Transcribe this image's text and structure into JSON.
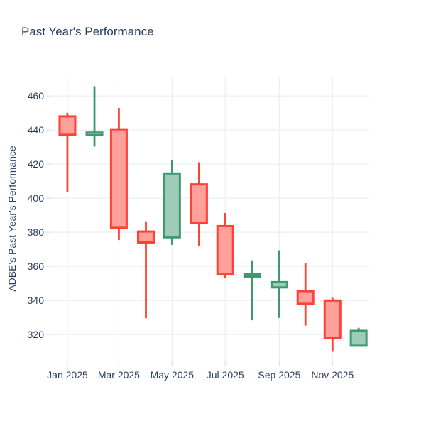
{
  "chart_data": {
    "type": "candlestick",
    "title": "Past Year's Performance",
    "ylabel": "ADBE's Past Year's Performance",
    "xlabel": "",
    "legend": false,
    "grid": true,
    "candles": [
      {
        "x": "Jan 2025",
        "open": 448.0,
        "high": 450.1,
        "low": 403.6,
        "close": 437.2
      },
      {
        "x": "Feb 2025",
        "open": 437.0,
        "high": 465.7,
        "low": 430.3,
        "close": 438.5
      },
      {
        "x": "Mar 2025",
        "open": 440.4,
        "high": 452.9,
        "low": 375.4,
        "close": 382.6
      },
      {
        "x": "Apr 2025",
        "open": 380.4,
        "high": 386.4,
        "low": 329.5,
        "close": 374.0
      },
      {
        "x": "May 2025",
        "open": 377.0,
        "high": 422.2,
        "low": 372.6,
        "close": 414.5
      },
      {
        "x": "Jun 2025",
        "open": 408.1,
        "high": 421.1,
        "low": 372.1,
        "close": 385.4
      },
      {
        "x": "Jul 2025",
        "open": 383.6,
        "high": 391.3,
        "low": 352.9,
        "close": 355.2
      },
      {
        "x": "Aug 2025",
        "open": 354.0,
        "high": 363.5,
        "low": 328.3,
        "close": 355.3
      },
      {
        "x": "Sep 2025",
        "open": 347.6,
        "high": 369.4,
        "low": 329.7,
        "close": 350.7
      },
      {
        "x": "Oct 2025",
        "open": 345.4,
        "high": 362.1,
        "low": 325.2,
        "close": 338.0
      },
      {
        "x": "Nov 2025",
        "open": 339.9,
        "high": 341.5,
        "low": 309.8,
        "close": 318.0
      },
      {
        "x": "Dec 2025",
        "open": 313.4,
        "high": 323.9,
        "low": 313.4,
        "close": 322.1
      }
    ],
    "x_tick_labels": [
      "Jan 2025",
      "Mar 2025",
      "May 2025",
      "Jul 2025",
      "Sep 2025",
      "Nov 2025"
    ],
    "x_tick_month_indices": [
      0,
      2,
      4,
      6,
      8,
      10
    ],
    "y_ticks": [
      320,
      340,
      360,
      380,
      400,
      420,
      440,
      460
    ],
    "ylim": [
      304.6,
      471.3
    ],
    "xlim_days": [
      -18.7,
      346.1
    ],
    "colors": {
      "increasing_line": "#3D9970",
      "increasing_fill": "#9ECCB8",
      "decreasing_line": "#FF4136",
      "decreasing_fill": "#FFA09B",
      "grid": "#EBF0F8",
      "tick": "#DDE4EF",
      "text": "#2A3F5F",
      "background": "#FFFFFF"
    }
  }
}
